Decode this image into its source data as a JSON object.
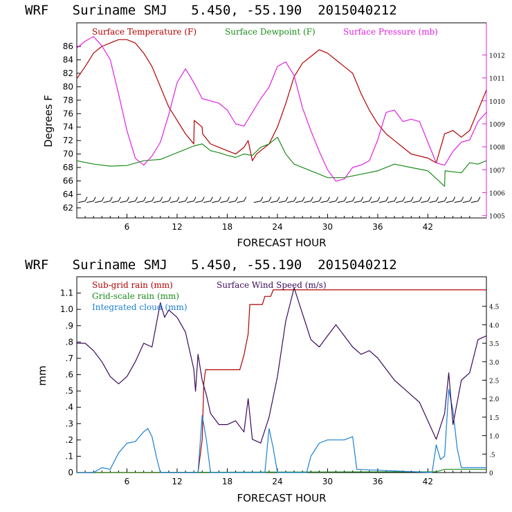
{
  "chart_data": [
    {
      "type": "line",
      "title": "WRF   Suriname SMJ   5.450, -55.190  2015040212",
      "xlabel": "FORECAST HOUR",
      "ylabel": "Degrees F",
      "xlim": [
        0,
        49
      ],
      "ylim": [
        60.5,
        89.5
      ],
      "y2lim": [
        1004.9,
        1013.4
      ],
      "xticks": [
        "6",
        "12",
        "18",
        "24",
        "30",
        "36",
        "42"
      ],
      "yticks": [
        "62",
        "64",
        "66",
        "68",
        "70",
        "72",
        "74",
        "76",
        "78",
        "80",
        "82",
        "84",
        "86"
      ],
      "y2ticks": [
        "1005",
        "1006",
        "1007",
        "1008",
        "1009",
        "1010",
        "1011",
        "1012"
      ],
      "series": [
        {
          "name": "Surface Temperature (F)",
          "color": "#b00000",
          "axis": "left",
          "x": [
            0,
            1,
            2,
            3,
            4,
            5,
            6,
            7,
            8,
            9,
            10,
            11,
            12,
            13,
            14,
            14.05,
            15,
            15.05,
            16,
            17,
            18,
            19,
            20,
            20.5,
            21,
            21.5,
            22,
            23,
            24,
            25,
            26,
            27,
            28,
            29,
            30,
            31,
            32,
            33,
            34,
            35,
            36,
            37,
            38,
            39,
            40,
            41,
            42,
            43,
            44,
            45,
            46,
            47,
            48,
            49
          ],
          "values": [
            81.2,
            83,
            85,
            86,
            86.5,
            87,
            87,
            86.5,
            85,
            83,
            80,
            77,
            75,
            73,
            71.5,
            75,
            74,
            73,
            71.5,
            71,
            70.5,
            70,
            71,
            72,
            69,
            70,
            70.5,
            71.5,
            74,
            77.5,
            81.5,
            83.5,
            84.5,
            85.5,
            85,
            84,
            83,
            82,
            79,
            76.5,
            74.5,
            73,
            72,
            71,
            70,
            69.7,
            69.4,
            68.7,
            73,
            73.5,
            72.5,
            73.5,
            76.5,
            79.5
          ]
        },
        {
          "name": "Surface Dewpoint (F)",
          "color": "#1a8c1a",
          "axis": "left",
          "x": [
            0,
            2,
            4,
            6,
            8,
            10,
            12,
            14,
            15,
            16,
            17,
            18,
            19,
            20,
            21,
            22,
            23,
            24,
            25,
            26,
            27,
            28,
            30,
            32,
            34,
            36,
            38,
            40,
            42,
            44,
            44.05,
            46,
            47,
            48,
            49
          ],
          "values": [
            69,
            68.5,
            68.2,
            68.3,
            69,
            69.2,
            70.2,
            71.2,
            71.5,
            70.5,
            70.2,
            69.8,
            69.5,
            70,
            69.8,
            71,
            71.5,
            72.5,
            70,
            68.5,
            68,
            67.5,
            66.5,
            66.5,
            67,
            67.5,
            68.5,
            68,
            67.5,
            65.2,
            67.5,
            67.2,
            68.7,
            68.5,
            69
          ]
        },
        {
          "name": "Surface Pressure (mb)",
          "color": "#e020e0",
          "axis": "right",
          "x": [
            0,
            1,
            2,
            3,
            4,
            5,
            6,
            7,
            8,
            9,
            10,
            11,
            12,
            13,
            14,
            15,
            16,
            17,
            18,
            19,
            20,
            21,
            22,
            23,
            24,
            25,
            26,
            27,
            28,
            29,
            30,
            31,
            32,
            33,
            34,
            35,
            36,
            37,
            38,
            39,
            40,
            41,
            42,
            43,
            44,
            45,
            46,
            47,
            48,
            49
          ],
          "values": [
            1012.3,
            1012.6,
            1012.8,
            1012.4,
            1011.8,
            1010.3,
            1008.7,
            1007.5,
            1007.2,
            1007.6,
            1008.2,
            1009.4,
            1010.8,
            1011.4,
            1010.8,
            1010.1,
            1010,
            1009.9,
            1009.6,
            1009,
            1008.9,
            1009.5,
            1010.1,
            1010.6,
            1011.5,
            1011.7,
            1011.1,
            1009.7,
            1008.7,
            1007.8,
            1007,
            1006.5,
            1006.6,
            1007.1,
            1007.2,
            1007.4,
            1008.3,
            1009.5,
            1009.6,
            1009.1,
            1009.2,
            1009.1,
            1008.2,
            1007.3,
            1007.2,
            1007.8,
            1008.2,
            1008.3,
            1009.1,
            1009.5
          ]
        }
      ],
      "wind_barbs": {
        "y_value": 62.9,
        "hours": [
          1,
          2,
          3,
          4,
          5,
          6,
          7,
          8,
          9,
          10,
          11,
          12,
          13,
          14,
          15,
          16,
          17,
          18,
          19,
          20,
          22,
          23,
          24,
          25,
          26,
          27,
          28,
          29,
          30,
          31,
          32,
          33,
          34,
          35,
          36,
          37,
          38,
          39,
          40,
          41,
          42,
          43,
          44,
          45,
          46,
          47,
          48
        ]
      }
    },
    {
      "type": "line",
      "title": "WRF   Suriname SMJ   5.450, -55.190  2015040212",
      "xlabel": "FORECAST HOUR",
      "ylabel": "mm",
      "xlim": [
        0,
        49
      ],
      "ylim": [
        0,
        1.2
      ],
      "y2lim": [
        0,
        5.3
      ],
      "xticks": [
        "6",
        "12",
        "18",
        "24",
        "30",
        "36",
        "42"
      ],
      "yticks": [
        "0",
        ".1",
        ".2",
        ".3",
        ".4",
        ".5",
        ".6",
        ".7",
        ".8",
        ".9",
        "1.0",
        "1.1"
      ],
      "y2ticks": [
        "0",
        ".5",
        "1.0",
        "1.5",
        "2.0",
        "2.5",
        "3.0",
        "3.5",
        "4.0",
        "4.5"
      ],
      "series": [
        {
          "name": "Sub-grid rain (mm)",
          "color": "#b00000",
          "axis": "left",
          "x": [
            0,
            14.5,
            15,
            15.2,
            15.4,
            19.5,
            20,
            20.5,
            20.7,
            22.2,
            22.5,
            23.2,
            23.5,
            49
          ],
          "values": [
            0,
            0,
            0.2,
            0.55,
            0.63,
            0.63,
            0.72,
            0.85,
            1.03,
            1.03,
            1.08,
            1.08,
            1.12,
            1.12
          ]
        },
        {
          "name": "Grid-scale rain (mm)",
          "color": "#1a8c1a",
          "axis": "left",
          "x": [
            0,
            43,
            44,
            49
          ],
          "values": [
            0,
            0.005,
            0.02,
            0.02
          ]
        },
        {
          "name": "Integrated cloud (mm)",
          "color": "#1a7fd4",
          "axis": "left",
          "x": [
            0,
            2,
            3,
            4,
            5,
            6,
            7,
            8,
            8.5,
            9,
            9.5,
            10,
            14.5,
            15,
            15.5,
            16,
            22.5,
            23,
            23.5,
            24,
            27.5,
            28,
            29,
            30,
            32,
            33,
            33.5,
            42.5,
            43,
            43.5,
            44,
            44.5,
            45,
            45.5,
            46,
            49
          ],
          "values": [
            0,
            0,
            0.03,
            0.02,
            0.12,
            0.18,
            0.19,
            0.25,
            0.27,
            0.22,
            0.1,
            0,
            0,
            0.35,
            0.2,
            0,
            0,
            0.27,
            0.15,
            0,
            0,
            0.1,
            0.18,
            0.2,
            0.2,
            0.22,
            0.02,
            0,
            0.17,
            0.08,
            0.1,
            0.51,
            0.38,
            0.15,
            0.03,
            0.03
          ]
        },
        {
          "name": "Surface Wind Speed (m/s)",
          "color": "#3a0a5a",
          "axis": "right",
          "x": [
            0,
            1,
            2,
            3,
            4,
            5,
            6,
            7,
            8,
            9,
            10,
            10.5,
            11,
            12,
            13,
            14,
            14.2,
            14.5,
            15,
            15.5,
            16,
            17,
            18,
            19,
            20,
            20.5,
            21,
            22,
            23,
            24,
            25,
            26,
            27,
            28,
            29,
            30,
            31,
            32,
            33,
            34,
            35,
            36,
            37,
            38,
            39,
            40,
            41,
            42,
            43,
            44,
            44.5,
            45,
            46,
            47,
            48,
            49
          ],
          "values": [
            3.5,
            3.5,
            3.3,
            3.0,
            2.6,
            2.4,
            2.6,
            3.0,
            3.5,
            3.4,
            4.6,
            4.2,
            4.4,
            4.2,
            3.8,
            2.8,
            2.2,
            3.2,
            2.5,
            2.1,
            1.6,
            1.3,
            1.3,
            1.4,
            1.1,
            2.0,
            0.9,
            0.8,
            1.5,
            2.6,
            4.1,
            5.0,
            4.3,
            3.6,
            3.4,
            3.7,
            4.0,
            3.7,
            3.4,
            3.2,
            3.3,
            3.1,
            2.8,
            2.5,
            2.3,
            2.1,
            1.9,
            1.4,
            0.9,
            1.6,
            2.7,
            1.3,
            2.5,
            2.7,
            3.6,
            3.7
          ]
        }
      ]
    }
  ]
}
